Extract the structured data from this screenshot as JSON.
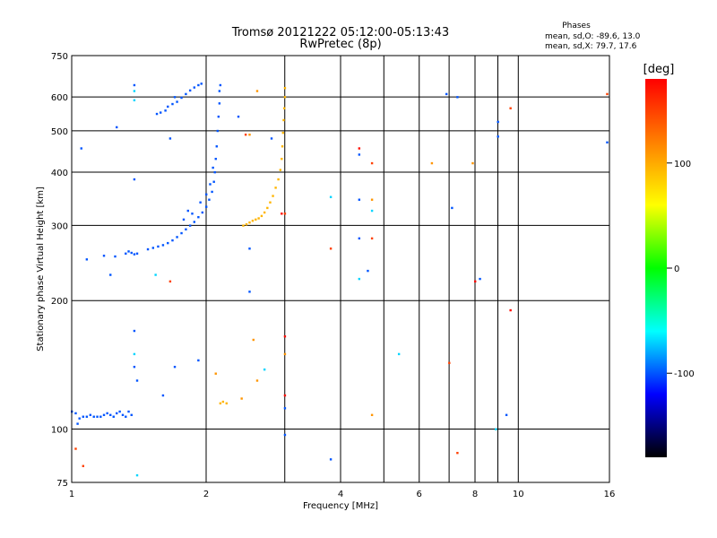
{
  "chart_data": {
    "type": "scatter",
    "title": "Tromsø 20121222 05:12:00-05:13:43",
    "subtitle": "RwPretec (8p)",
    "xlabel": "Frequency [MHz]",
    "ylabel": "Stationary phase Virtual Height [km]",
    "xscale": "log",
    "yscale": "log",
    "xlim": [
      1,
      16
    ],
    "ylim": [
      75,
      750
    ],
    "grid": true,
    "x_ticks": [
      1,
      2,
      4,
      6,
      8,
      10,
      16
    ],
    "y_ticks": [
      75,
      100,
      200,
      300,
      400,
      500,
      600,
      750
    ],
    "stats": {
      "heading": "Phases",
      "line_o": "mean, sd,O: -89.6, 13.0",
      "line_x": "mean, sd,X:  79.7, 17.6"
    },
    "colorbar": {
      "label": "[deg]",
      "range": [
        -180,
        180
      ],
      "ticks": [
        100,
        0,
        -100
      ],
      "colors": [
        "#ff0000",
        "#ff8000",
        "#ffff00",
        "#00ff00",
        "#00ffff",
        "#0000ff",
        "#000000"
      ]
    },
    "series": [
      {
        "points": [
          {
            "x": 1.0,
            "y": 110,
            "phase": -100
          },
          {
            "x": 1.02,
            "y": 109,
            "phase": -100
          },
          {
            "x": 1.04,
            "y": 106,
            "phase": -100
          },
          {
            "x": 1.06,
            "y": 107,
            "phase": -100
          },
          {
            "x": 1.08,
            "y": 107,
            "phase": -100
          },
          {
            "x": 1.1,
            "y": 108,
            "phase": -100
          },
          {
            "x": 1.12,
            "y": 107,
            "phase": -100
          },
          {
            "x": 1.14,
            "y": 107,
            "phase": -100
          },
          {
            "x": 1.16,
            "y": 107,
            "phase": -100
          },
          {
            "x": 1.18,
            "y": 108,
            "phase": -100
          },
          {
            "x": 1.2,
            "y": 109,
            "phase": -100
          },
          {
            "x": 1.22,
            "y": 108,
            "phase": -100
          },
          {
            "x": 1.24,
            "y": 107,
            "phase": -100
          },
          {
            "x": 1.26,
            "y": 109,
            "phase": -100
          },
          {
            "x": 1.28,
            "y": 110,
            "phase": -100
          },
          {
            "x": 1.3,
            "y": 108,
            "phase": -100
          },
          {
            "x": 1.32,
            "y": 107,
            "phase": -100
          },
          {
            "x": 1.34,
            "y": 110,
            "phase": -100
          },
          {
            "x": 1.36,
            "y": 108,
            "phase": -100
          },
          {
            "x": 1.03,
            "y": 103,
            "phase": -100
          },
          {
            "x": 1.18,
            "y": 255,
            "phase": -100
          },
          {
            "x": 1.25,
            "y": 254,
            "phase": -100
          },
          {
            "x": 1.32,
            "y": 258,
            "phase": -100
          },
          {
            "x": 1.34,
            "y": 261,
            "phase": -100
          },
          {
            "x": 1.36,
            "y": 259,
            "phase": -100
          },
          {
            "x": 1.38,
            "y": 257,
            "phase": -100
          },
          {
            "x": 1.4,
            "y": 258,
            "phase": -100
          },
          {
            "x": 1.48,
            "y": 264,
            "phase": -100
          },
          {
            "x": 1.52,
            "y": 266,
            "phase": -100
          },
          {
            "x": 1.56,
            "y": 268,
            "phase": -100
          },
          {
            "x": 1.6,
            "y": 270,
            "phase": -100
          },
          {
            "x": 1.64,
            "y": 273,
            "phase": -100
          },
          {
            "x": 1.68,
            "y": 277,
            "phase": -100
          },
          {
            "x": 1.72,
            "y": 282,
            "phase": -100
          },
          {
            "x": 1.76,
            "y": 288,
            "phase": -100
          },
          {
            "x": 1.8,
            "y": 294,
            "phase": -100
          },
          {
            "x": 1.84,
            "y": 300,
            "phase": -100
          },
          {
            "x": 1.88,
            "y": 306,
            "phase": -100
          },
          {
            "x": 1.92,
            "y": 314,
            "phase": -100
          },
          {
            "x": 1.96,
            "y": 322,
            "phase": -100
          },
          {
            "x": 2.0,
            "y": 332,
            "phase": -100
          },
          {
            "x": 2.03,
            "y": 345,
            "phase": -100
          },
          {
            "x": 2.06,
            "y": 360,
            "phase": -100
          },
          {
            "x": 2.08,
            "y": 380,
            "phase": -100
          },
          {
            "x": 2.09,
            "y": 400,
            "phase": -100
          },
          {
            "x": 2.1,
            "y": 430,
            "phase": -100
          },
          {
            "x": 2.11,
            "y": 460,
            "phase": -100
          },
          {
            "x": 2.12,
            "y": 500,
            "phase": -100
          },
          {
            "x": 2.13,
            "y": 540,
            "phase": -100
          },
          {
            "x": 2.14,
            "y": 580,
            "phase": -100
          },
          {
            "x": 2.14,
            "y": 620,
            "phase": -100
          },
          {
            "x": 2.15,
            "y": 640,
            "phase": -100
          },
          {
            "x": 1.78,
            "y": 310,
            "phase": -100
          },
          {
            "x": 1.86,
            "y": 320,
            "phase": -100
          },
          {
            "x": 1.94,
            "y": 340,
            "phase": -100
          },
          {
            "x": 2.0,
            "y": 355,
            "phase": -100
          },
          {
            "x": 2.04,
            "y": 375,
            "phase": -100
          },
          {
            "x": 2.07,
            "y": 410,
            "phase": -100
          },
          {
            "x": 1.55,
            "y": 548,
            "phase": -100
          },
          {
            "x": 1.58,
            "y": 552,
            "phase": -100
          },
          {
            "x": 1.62,
            "y": 558,
            "phase": -100
          },
          {
            "x": 1.64,
            "y": 570,
            "phase": -100
          },
          {
            "x": 1.68,
            "y": 578,
            "phase": -100
          },
          {
            "x": 1.72,
            "y": 585,
            "phase": -100
          },
          {
            "x": 1.76,
            "y": 598,
            "phase": -100
          },
          {
            "x": 1.8,
            "y": 610,
            "phase": -100
          },
          {
            "x": 1.84,
            "y": 622,
            "phase": -100
          },
          {
            "x": 1.88,
            "y": 632,
            "phase": -100
          },
          {
            "x": 1.92,
            "y": 640,
            "phase": -100
          },
          {
            "x": 1.95,
            "y": 645,
            "phase": -100
          },
          {
            "x": 1.7,
            "y": 600,
            "phase": -100
          },
          {
            "x": 2.42,
            "y": 300,
            "phase": 95
          },
          {
            "x": 2.46,
            "y": 302,
            "phase": 95
          },
          {
            "x": 2.5,
            "y": 305,
            "phase": 95
          },
          {
            "x": 2.54,
            "y": 308,
            "phase": 95
          },
          {
            "x": 2.58,
            "y": 310,
            "phase": 95
          },
          {
            "x": 2.62,
            "y": 312,
            "phase": 95
          },
          {
            "x": 2.66,
            "y": 316,
            "phase": 95
          },
          {
            "x": 2.7,
            "y": 322,
            "phase": 95
          },
          {
            "x": 2.74,
            "y": 330,
            "phase": 95
          },
          {
            "x": 2.78,
            "y": 340,
            "phase": 95
          },
          {
            "x": 2.82,
            "y": 352,
            "phase": 95
          },
          {
            "x": 2.86,
            "y": 368,
            "phase": 95
          },
          {
            "x": 2.9,
            "y": 385,
            "phase": 95
          },
          {
            "x": 2.93,
            "y": 405,
            "phase": 95
          },
          {
            "x": 2.95,
            "y": 430,
            "phase": 95
          },
          {
            "x": 2.96,
            "y": 460,
            "phase": 95
          },
          {
            "x": 2.97,
            "y": 495,
            "phase": 95
          },
          {
            "x": 2.98,
            "y": 530,
            "phase": 95
          },
          {
            "x": 2.99,
            "y": 565,
            "phase": 95
          },
          {
            "x": 3.0,
            "y": 600,
            "phase": 95
          },
          {
            "x": 3.0,
            "y": 630,
            "phase": 95
          },
          {
            "x": 2.15,
            "y": 115,
            "phase": 95
          },
          {
            "x": 2.18,
            "y": 116,
            "phase": 95
          },
          {
            "x": 2.22,
            "y": 115,
            "phase": 95
          },
          {
            "x": 1.05,
            "y": 455,
            "phase": -100
          },
          {
            "x": 1.26,
            "y": 510,
            "phase": -100
          },
          {
            "x": 1.38,
            "y": 640,
            "phase": -100
          },
          {
            "x": 1.38,
            "y": 385,
            "phase": -100
          },
          {
            "x": 1.22,
            "y": 230,
            "phase": -100
          },
          {
            "x": 1.08,
            "y": 250,
            "phase": -100
          },
          {
            "x": 1.38,
            "y": 170,
            "phase": -100
          },
          {
            "x": 1.38,
            "y": 140,
            "phase": -100
          },
          {
            "x": 1.4,
            "y": 130,
            "phase": -100
          },
          {
            "x": 1.6,
            "y": 120,
            "phase": -100
          },
          {
            "x": 1.66,
            "y": 480,
            "phase": -100
          },
          {
            "x": 1.7,
            "y": 140,
            "phase": -100
          },
          {
            "x": 1.82,
            "y": 325,
            "phase": -100
          },
          {
            "x": 1.92,
            "y": 145,
            "phase": -100
          },
          {
            "x": 2.36,
            "y": 540,
            "phase": -100
          },
          {
            "x": 2.5,
            "y": 265,
            "phase": -100
          },
          {
            "x": 2.5,
            "y": 210,
            "phase": -100
          },
          {
            "x": 2.8,
            "y": 480,
            "phase": -100
          },
          {
            "x": 3.0,
            "y": 97,
            "phase": -100
          },
          {
            "x": 3.0,
            "y": 112,
            "phase": -100
          },
          {
            "x": 4.4,
            "y": 440,
            "phase": -100
          },
          {
            "x": 4.4,
            "y": 345,
            "phase": -100
          },
          {
            "x": 4.4,
            "y": 280,
            "phase": -100
          },
          {
            "x": 4.6,
            "y": 235,
            "phase": -100
          },
          {
            "x": 6.9,
            "y": 610,
            "phase": -100
          },
          {
            "x": 7.1,
            "y": 330,
            "phase": -100
          },
          {
            "x": 8.2,
            "y": 225,
            "phase": -100
          },
          {
            "x": 9.0,
            "y": 525,
            "phase": -100
          },
          {
            "x": 9.0,
            "y": 485,
            "phase": -100
          },
          {
            "x": 9.4,
            "y": 108,
            "phase": -100
          },
          {
            "x": 15.8,
            "y": 470,
            "phase": -100
          },
          {
            "x": 3.8,
            "y": 85,
            "phase": -100
          },
          {
            "x": 7.3,
            "y": 600,
            "phase": -100
          },
          {
            "x": 1.38,
            "y": 620,
            "phase": -70
          },
          {
            "x": 1.38,
            "y": 590,
            "phase": -70
          },
          {
            "x": 1.54,
            "y": 230,
            "phase": -70
          },
          {
            "x": 2.7,
            "y": 138,
            "phase": -70
          },
          {
            "x": 4.4,
            "y": 225,
            "phase": -70
          },
          {
            "x": 4.7,
            "y": 325,
            "phase": -70
          },
          {
            "x": 5.4,
            "y": 150,
            "phase": -70
          },
          {
            "x": 3.8,
            "y": 350,
            "phase": -70
          },
          {
            "x": 8.9,
            "y": 100,
            "phase": -70
          },
          {
            "x": 1.4,
            "y": 78,
            "phase": -70
          },
          {
            "x": 1.38,
            "y": 150,
            "phase": -70
          },
          {
            "x": 2.1,
            "y": 135,
            "phase": 110
          },
          {
            "x": 2.5,
            "y": 490,
            "phase": 110
          },
          {
            "x": 2.6,
            "y": 620,
            "phase": 110
          },
          {
            "x": 2.55,
            "y": 162,
            "phase": 110
          },
          {
            "x": 2.6,
            "y": 130,
            "phase": 110
          },
          {
            "x": 3.0,
            "y": 150,
            "phase": 110
          },
          {
            "x": 4.7,
            "y": 345,
            "phase": 110
          },
          {
            "x": 4.7,
            "y": 108,
            "phase": 110
          },
          {
            "x": 6.4,
            "y": 420,
            "phase": 110
          },
          {
            "x": 7.9,
            "y": 420,
            "phase": 110
          },
          {
            "x": 2.4,
            "y": 118,
            "phase": 110
          },
          {
            "x": 1.02,
            "y": 90,
            "phase": 150
          },
          {
            "x": 1.06,
            "y": 82,
            "phase": 150
          },
          {
            "x": 1.66,
            "y": 222,
            "phase": 150
          },
          {
            "x": 2.45,
            "y": 490,
            "phase": 150
          },
          {
            "x": 3.0,
            "y": 320,
            "phase": 150
          },
          {
            "x": 3.8,
            "y": 265,
            "phase": 150
          },
          {
            "x": 4.7,
            "y": 420,
            "phase": 150
          },
          {
            "x": 4.7,
            "y": 280,
            "phase": 150
          },
          {
            "x": 7.0,
            "y": 143,
            "phase": 150
          },
          {
            "x": 7.3,
            "y": 88,
            "phase": 150
          },
          {
            "x": 9.6,
            "y": 565,
            "phase": 150
          },
          {
            "x": 15.8,
            "y": 610,
            "phase": 150
          },
          {
            "x": 3.0,
            "y": 165,
            "phase": 175
          },
          {
            "x": 3.0,
            "y": 120,
            "phase": 175
          },
          {
            "x": 4.4,
            "y": 455,
            "phase": 175
          },
          {
            "x": 8.0,
            "y": 222,
            "phase": 175
          },
          {
            "x": 9.6,
            "y": 190,
            "phase": 175
          },
          {
            "x": 2.95,
            "y": 320,
            "phase": 175
          }
        ]
      }
    ]
  }
}
